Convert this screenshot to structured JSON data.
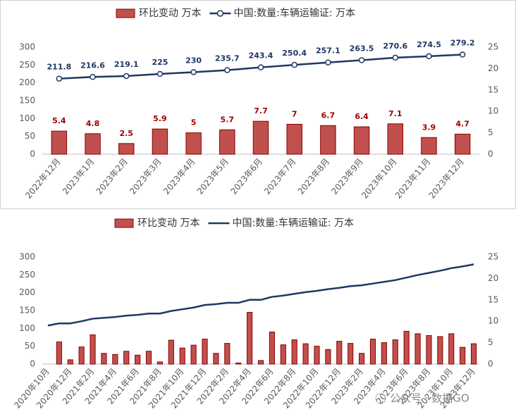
{
  "chart_data": [
    {
      "type": "combo",
      "categories": [
        "2022年12月",
        "2023年1月",
        "2023年2月",
        "2023年3月",
        "2023年4月",
        "2023年5月",
        "2023年6月",
        "2023年7月",
        "2023年8月",
        "2023年9月",
        "2023年10月",
        "2023年11月",
        "2023年12月"
      ],
      "series": [
        {
          "name": "环比变动 万本",
          "type": "bar",
          "axis": "y2",
          "color": "#c0504d",
          "values": [
            5.4,
            4.8,
            2.5,
            5.9,
            5,
            5.7,
            7.7,
            7,
            6.7,
            6.4,
            7.1,
            3.9,
            4.7
          ]
        },
        {
          "name": "中国:数量:车辆运输证: 万本",
          "type": "line",
          "color": "#1f3864",
          "values": [
            211.8,
            216.6,
            219.1,
            225,
            230,
            235.7,
            243.4,
            250.4,
            257.1,
            263.5,
            270.6,
            274.5,
            279.2
          ]
        }
      ],
      "markers": true,
      "data_labels": true,
      "ylim": [
        0,
        300
      ],
      "yticks": [
        0,
        50,
        100,
        150,
        200,
        250,
        300
      ],
      "y2lim": [
        0,
        25
      ],
      "y2ticks": [
        0,
        5,
        10,
        15,
        20,
        25
      ]
    },
    {
      "type": "combo",
      "categories": [
        "2020年10月",
        null,
        "2020年12月",
        null,
        "2021年2月",
        null,
        "2021年4月",
        null,
        "2021年6月",
        null,
        "2021年8月",
        null,
        "2021年10月",
        null,
        "2021年12月",
        null,
        "2022年2月",
        null,
        "2022年4月",
        null,
        "2022年6月",
        null,
        "2022年8月",
        null,
        "2022年10月",
        null,
        "2022年12月",
        null,
        "2023年2月",
        null,
        "2023年4月",
        null,
        "2023年6月",
        null,
        "2023年8月",
        null,
        "2023年10月",
        null,
        "2023年12月"
      ],
      "series": [
        {
          "name": "环比变动 万本",
          "type": "bar",
          "color": "#c0504d",
          "values": [
            null,
            62,
            12,
            48,
            82,
            30,
            27,
            36,
            25,
            36,
            6,
            67,
            45,
            53,
            70,
            30,
            58,
            3,
            145,
            10,
            90,
            54,
            68,
            57,
            50,
            41,
            64,
            58,
            30,
            70,
            60,
            68,
            92,
            85,
            80,
            77,
            85,
            47,
            57
          ]
        },
        {
          "name": "中国:数量:车辆运输证: 万本",
          "type": "line",
          "axis": "y2",
          "color": "#1f3864",
          "values": [
            9,
            9.5,
            9.5,
            10,
            10.6,
            10.8,
            11,
            11.3,
            11.5,
            11.8,
            11.8,
            12.4,
            12.8,
            13.2,
            13.8,
            14,
            14.3,
            14.3,
            15,
            15,
            15.7,
            16,
            16.4,
            16.8,
            17.1,
            17.5,
            17.8,
            18.2,
            18.4,
            18.8,
            19.2,
            19.6,
            20.2,
            20.8,
            21.3,
            21.8,
            22.4,
            22.8,
            23.3
          ]
        }
      ],
      "markers": false,
      "data_labels": false,
      "ylim": [
        0,
        300
      ],
      "yticks": [
        0,
        50,
        100,
        150,
        200,
        250,
        300
      ],
      "y2lim": [
        0,
        25
      ],
      "y2ticks": [
        0,
        5,
        10,
        15,
        20,
        25
      ],
      "annotation": "公众号 · 数据GO"
    }
  ]
}
